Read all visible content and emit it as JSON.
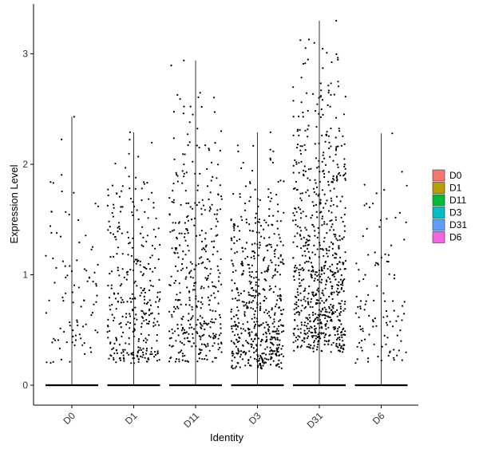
{
  "chart_data": {
    "type": "scatter",
    "subtype": "jittered-violin-strip",
    "title": "",
    "xlabel": "Identity",
    "ylabel": "Expression Level",
    "ylim": [
      -0.2,
      3.33
    ],
    "yticks": [
      0,
      1,
      2,
      3
    ],
    "categories": [
      "D0",
      "D1",
      "D11",
      "D3",
      "D31",
      "D6"
    ],
    "legend": {
      "placement": "right",
      "entries": [
        {
          "label": "D0",
          "color": "#F8766D"
        },
        {
          "label": "D1",
          "color": "#B79F00"
        },
        {
          "label": "D11",
          "color": "#00BA38"
        },
        {
          "label": "D3",
          "color": "#00BFC4"
        },
        {
          "label": "D31",
          "color": "#619CFF"
        },
        {
          "label": "D6",
          "color": "#F564E3"
        }
      ]
    },
    "series": [
      {
        "category": "D0",
        "max": 2.43,
        "nonzero_points": 95,
        "value_range": [
          0.2,
          2.43
        ]
      },
      {
        "category": "D1",
        "max": 2.29,
        "nonzero_points": 330,
        "value_range": [
          0.2,
          2.29
        ]
      },
      {
        "category": "D11",
        "max": 2.94,
        "nonzero_points": 400,
        "value_range": [
          0.2,
          2.94
        ]
      },
      {
        "category": "D3",
        "max": 2.29,
        "nonzero_points": 550,
        "value_range": [
          0.15,
          2.29
        ]
      },
      {
        "category": "D31",
        "max": 3.3,
        "nonzero_points": 750,
        "value_range": [
          0.3,
          3.3
        ]
      },
      {
        "category": "D6",
        "max": 2.28,
        "nonzero_points": 110,
        "value_range": [
          0.2,
          2.28
        ]
      }
    ],
    "zero_baseline": true,
    "grid": false,
    "point_color": "#000000"
  }
}
